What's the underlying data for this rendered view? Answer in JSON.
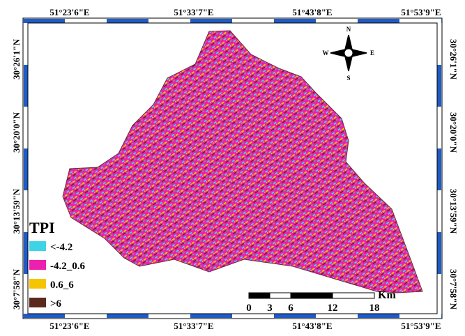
{
  "longitude_labels": [
    "51°23'6\"E",
    "51°33'7\"E",
    "51°43'8\"E",
    "51°53'9\"E"
  ],
  "latitude_labels": [
    "30°26'1\"N",
    "30°20'0\"N",
    "30°13'59\"N",
    "30°7'58\"N"
  ],
  "legend": {
    "title": "TPI",
    "items": [
      {
        "label": "<-4.2",
        "color": "#3fd3e6"
      },
      {
        "label": "-4.2_0.6",
        "color": "#ec1fae"
      },
      {
        "label": "0.6_6",
        "color": "#f6c400"
      },
      {
        "label": ">6",
        "color": "#5b2a1c"
      }
    ]
  },
  "scale_bar": {
    "unit": "Km",
    "ticks": [
      0,
      3,
      6,
      12,
      18
    ]
  },
  "compass": {
    "n": "N",
    "e": "E",
    "s": "S",
    "w": "W"
  }
}
